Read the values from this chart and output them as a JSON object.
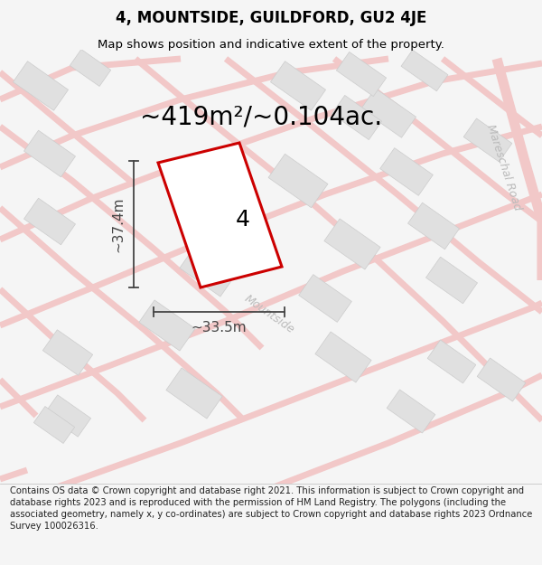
{
  "title": "4, MOUNTSIDE, GUILDFORD, GU2 4JE",
  "subtitle": "Map shows position and indicative extent of the property.",
  "area_text": "~419m²/~0.104ac.",
  "width_label": "~33.5m",
  "height_label": "~37.4m",
  "plot_number": "4",
  "footer": "Contains OS data © Crown copyright and database right 2021. This information is subject to Crown copyright and database rights 2023 and is reproduced with the permission of HM Land Registry. The polygons (including the associated geometry, namely x, y co-ordinates) are subject to Crown copyright and database rights 2023 Ordnance Survey 100026316.",
  "bg_color": "#f5f5f5",
  "map_bg": "#ffffff",
  "road_color": "#f2c8c8",
  "block_color": "#e0e0e0",
  "block_edge": "#cccccc",
  "plot_color": "#cc0000",
  "plot_fill": "#ffffff",
  "dim_color": "#444444",
  "road_label_color": "#bbbbbb",
  "title_color": "#000000",
  "footer_color": "#222222",
  "title_fontsize": 12,
  "subtitle_fontsize": 9.5,
  "area_fontsize": 20,
  "plot_number_fontsize": 18,
  "dim_fontsize": 11,
  "footer_fontsize": 7.2,
  "road_label_fontsize": 9
}
